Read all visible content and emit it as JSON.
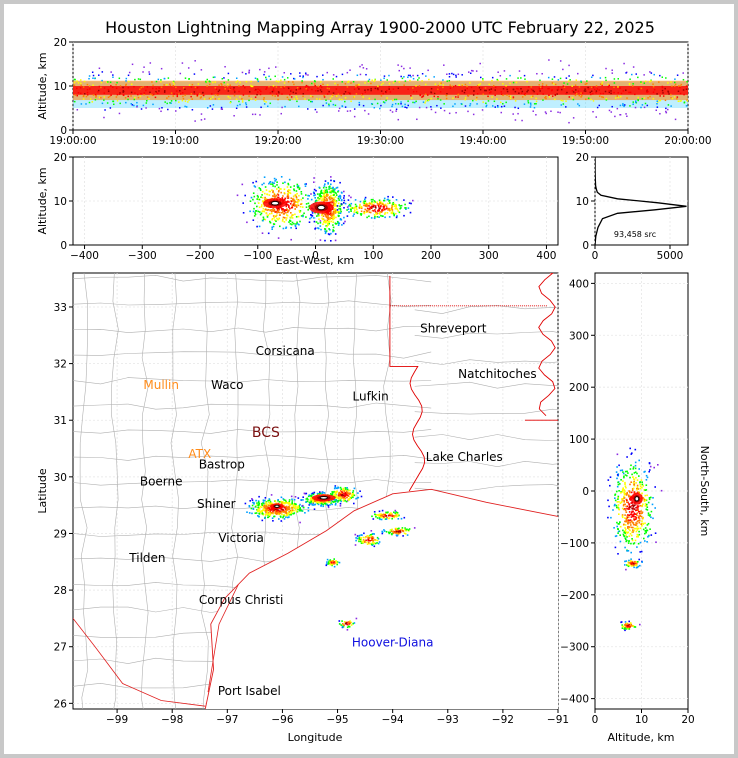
{
  "title": "Houston Lightning Mapping Array 1900-2000 UTC February 22, 2025",
  "colors": {
    "frame": "#c8c8c8",
    "coast": "#e02020",
    "borders": "#b0b0b0",
    "state_line": "#e00000",
    "label_orange": "#ff8c1a",
    "label_blue": "#1010e0",
    "label_dark_red": "#7a1010",
    "label_green": "#40c040",
    "colormap": [
      "#8a2be2",
      "#0000ff",
      "#00a0ff",
      "#00ff00",
      "#ffff00",
      "#ff8000",
      "#ff0000",
      "#a00000",
      "#ffffff"
    ]
  },
  "panels": {
    "time_height": {
      "ylabel": "Altitude, km",
      "xticks": [
        "19:00:00",
        "19:10:00",
        "19:20:00",
        "19:30:00",
        "19:40:00",
        "19:50:00",
        "20:00:00"
      ],
      "yticks": [
        "0",
        "10",
        "20"
      ]
    },
    "ew_height": {
      "ylabel": "Altitude, km",
      "xlabel": "East-West, km",
      "xticks": [
        "−400",
        "−300",
        "−200",
        "−100",
        "0",
        "100",
        "200",
        "300",
        "400"
      ],
      "yticks": [
        "0",
        "10",
        "20"
      ]
    },
    "histogram": {
      "xticks": [
        "0",
        "5000"
      ],
      "yticks": [
        "0",
        "10",
        "20"
      ],
      "source_count": "93,458 src"
    },
    "plan": {
      "xlabel": "Longitude",
      "ylabel": "Latitude",
      "xticks": [
        "−99",
        "−98",
        "−97",
        "−96",
        "−95",
        "−94",
        "−93",
        "−92",
        "−91"
      ],
      "yticks": [
        "26",
        "27",
        "28",
        "29",
        "30",
        "31",
        "32",
        "33"
      ]
    },
    "ns_height": {
      "xlabel": "Altitude, km",
      "ylabel": "North-South, km",
      "xticks": [
        "0",
        "10",
        "20"
      ],
      "yticks": [
        "−400",
        "−300",
        "−200",
        "−100",
        "0",
        "100",
        "200",
        "300",
        "400"
      ]
    }
  },
  "cities": [
    {
      "name": "Shreveport",
      "lon": -92.9,
      "lat": 32.55,
      "color": "#000000"
    },
    {
      "name": "Corsicana",
      "lon": -95.95,
      "lat": 32.15,
      "color": "#000000"
    },
    {
      "name": "Natchitoches",
      "lon": -92.1,
      "lat": 31.75,
      "color": "#000000"
    },
    {
      "name": "Mullin",
      "lon": -98.2,
      "lat": 31.55,
      "color": "#ff8c1a"
    },
    {
      "name": "Waco",
      "lon": -97.0,
      "lat": 31.55,
      "color": "#000000"
    },
    {
      "name": "Lufkin",
      "lon": -94.4,
      "lat": 31.35,
      "color": "#000000"
    },
    {
      "name": "BCS",
      "lon": -96.3,
      "lat": 30.7,
      "color": "#7a1010"
    },
    {
      "name": "ATX",
      "lon": -97.5,
      "lat": 30.33,
      "color": "#ff8c1a"
    },
    {
      "name": "Bastrop",
      "lon": -97.1,
      "lat": 30.15,
      "color": "#000000"
    },
    {
      "name": "Lake Charles",
      "lon": -92.7,
      "lat": 30.28,
      "color": "#000000"
    },
    {
      "name": "Boerne",
      "lon": -98.2,
      "lat": 29.85,
      "color": "#000000"
    },
    {
      "name": "Shiner",
      "lon": -97.2,
      "lat": 29.45,
      "color": "#000000"
    },
    {
      "name": "Victoria",
      "lon": -96.75,
      "lat": 28.85,
      "color": "#000000"
    },
    {
      "name": "Tilden",
      "lon": -98.45,
      "lat": 28.5,
      "color": "#000000"
    },
    {
      "name": "Corpus Christi",
      "lon": -96.75,
      "lat": 27.75,
      "color": "#000000"
    },
    {
      "name": "Hoover-Diana",
      "lon": -94.0,
      "lat": 27.0,
      "color": "#1010e0"
    },
    {
      "name": "Port Isabel",
      "lon": -96.6,
      "lat": 26.15,
      "color": "#000000"
    }
  ],
  "chart_data": [
    {
      "type": "scatter",
      "title": "Houston Lightning Mapping Array 1900-2000 UTC February 22, 2025",
      "description_panel": "time-height",
      "xlabel": "",
      "ylabel": "Altitude, km",
      "xlim": [
        "19:00:00",
        "20:00:00"
      ],
      "ylim": [
        0,
        20
      ],
      "series": [
        {
          "values": [
            {
              "x": "19:00-20:00",
              "y_core_km": 9,
              "y_range_km": [
                3,
                13
              ]
            }
          ]
        }
      ]
    },
    {
      "type": "scatter",
      "description_panel": "east-west vs altitude",
      "xlabel": "East-West, km",
      "ylabel": "Altitude, km",
      "xlim": [
        -420,
        420
      ],
      "ylim": [
        0,
        20
      ],
      "series": [
        {
          "values": [
            {
              "x_range_km": [
                -115,
                -5
              ],
              "y_core_km": 9.5
            },
            {
              "x_range_km": [
                -5,
                45
              ],
              "y_core_km": 8.5
            },
            {
              "x_range_km": [
                50,
                160
              ],
              "y_core_km": 8.5
            }
          ]
        }
      ]
    },
    {
      "type": "line",
      "description_panel": "source altitude histogram",
      "xlim": [
        0,
        6200
      ],
      "ylim": [
        0,
        20
      ],
      "x": [
        0,
        50,
        200,
        500,
        1500,
        4000,
        6100,
        4200,
        1500,
        400,
        150,
        80,
        40,
        20,
        10,
        5,
        0
      ],
      "y": [
        0,
        2,
        4,
        6,
        7.2,
        8,
        8.8,
        9.6,
        10.5,
        11.3,
        12,
        12.8,
        13.5,
        15,
        17,
        19,
        20
      ]
    },
    {
      "type": "scatter",
      "description_panel": "plan view",
      "xlabel": "Longitude",
      "ylabel": "Latitude",
      "xlim": [
        -99.8,
        -91
      ],
      "ylim": [
        25.9,
        33.6
      ],
      "series": [
        {
          "values": [
            {
              "lon": -96.1,
              "lat": 29.45
            },
            {
              "lon": -95.3,
              "lat": 29.62
            },
            {
              "lon": -94.9,
              "lat": 29.7
            },
            {
              "lon": -94.1,
              "lat": 29.33
            },
            {
              "lon": -93.9,
              "lat": 29.05
            },
            {
              "lon": -94.45,
              "lat": 28.9
            },
            {
              "lon": -95.1,
              "lat": 28.5
            },
            {
              "lon": -94.85,
              "lat": 27.42
            }
          ]
        }
      ]
    },
    {
      "type": "scatter",
      "description_panel": "altitude vs north-south",
      "xlabel": "Altitude, km",
      "ylabel": "North-South, km",
      "xlim": [
        0,
        20
      ],
      "ylim": [
        -420,
        420
      ],
      "series": [
        {
          "values": [
            {
              "y_range_km": [
                -100,
                40
              ],
              "x_core_km": 8
            },
            {
              "y_km": -138,
              "x_core_km": 8
            },
            {
              "y_km": -258,
              "x_core_km": 7
            }
          ]
        }
      ]
    }
  ]
}
